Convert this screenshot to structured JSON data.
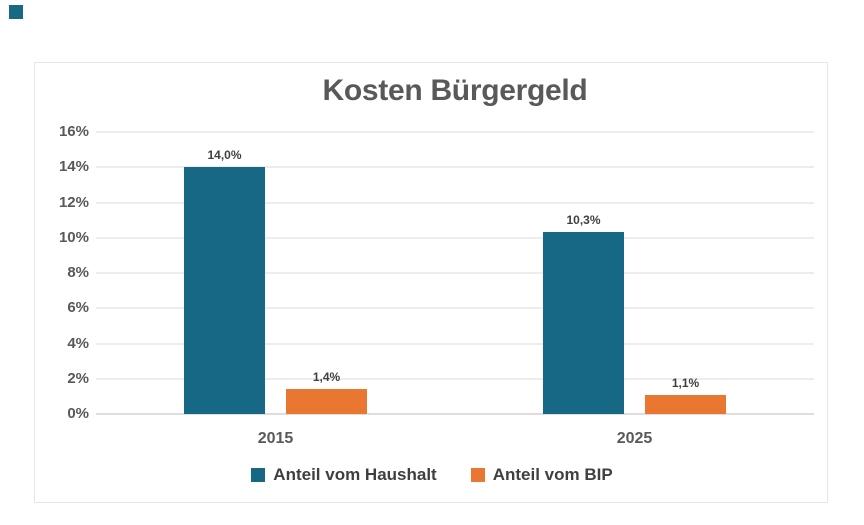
{
  "page": {
    "background": "#FFFFFF"
  },
  "corner_marker": {
    "color": "#176884"
  },
  "chart_data": {
    "type": "bar",
    "title": "Kosten Bürgergeld",
    "categories": [
      "2015",
      "2025"
    ],
    "series": [
      {
        "name": "Anteil vom Haushalt",
        "color": "#176884",
        "values": [
          14.0,
          10.3
        ],
        "value_labels": [
          "14,0%",
          "10,3%"
        ]
      },
      {
        "name": "Anteil vom BIP",
        "color": "#E97732",
        "values": [
          1.4,
          1.1
        ],
        "value_labels": [
          "1,4%",
          "1,1%"
        ]
      }
    ],
    "xlabel": "",
    "ylabel": "",
    "ylim": [
      0,
      16
    ],
    "ytick_step": 2,
    "ytick_labels": [
      "0%",
      "2%",
      "4%",
      "6%",
      "8%",
      "10%",
      "12%",
      "14%",
      "16%"
    ],
    "grid": true,
    "legend_position": "bottom",
    "colors": {
      "title_text": "#595959",
      "axis_text": "#595959",
      "value_label_text": "#3F3F3F",
      "legend_text": "#3F3F3F",
      "gridline": "#EDEDED",
      "axis_line": "#DEDEDE",
      "frame_border": "#E6E6E6",
      "background": "#FFFFFF"
    }
  }
}
